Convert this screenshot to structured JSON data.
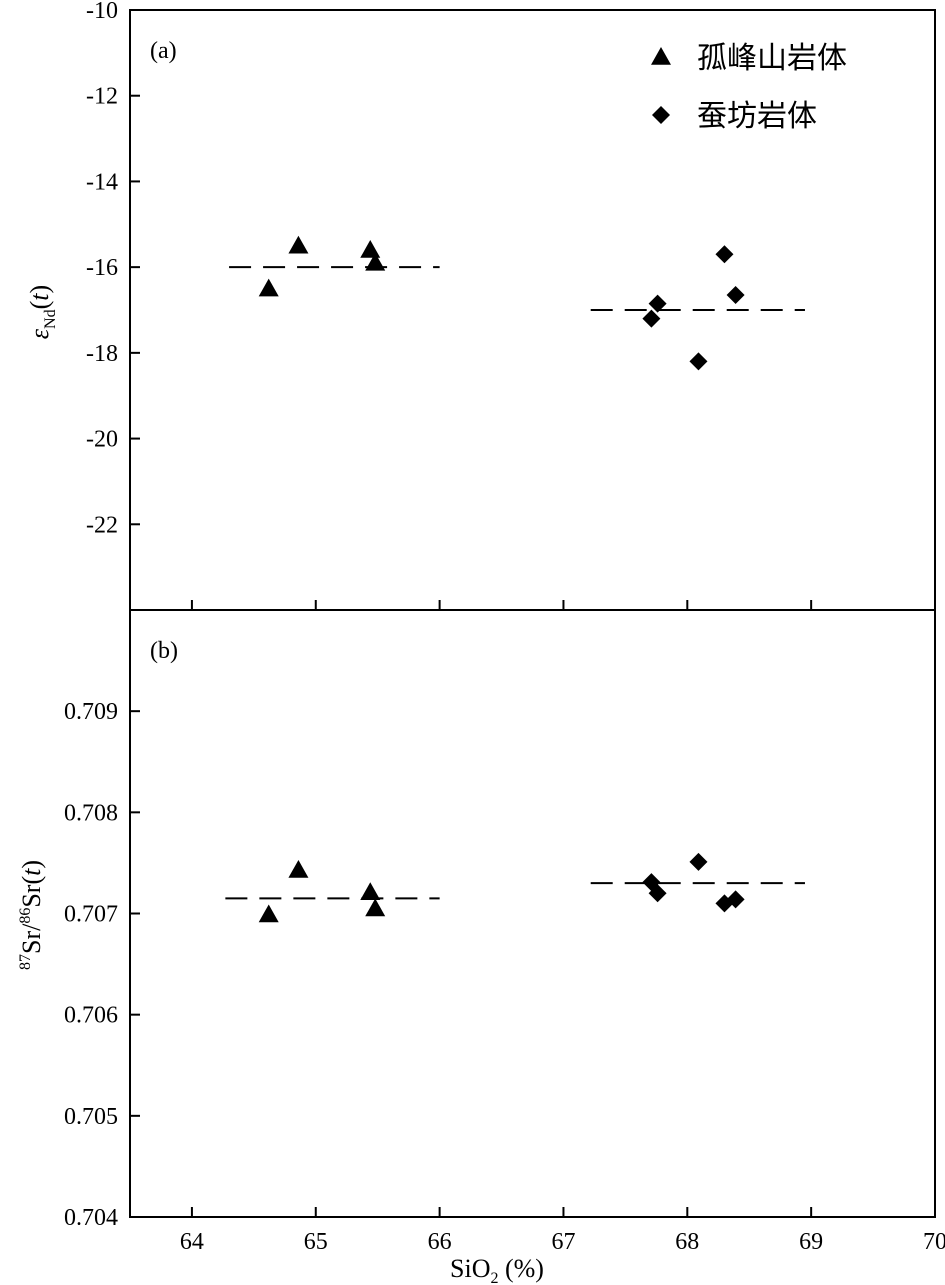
{
  "chart_data": [
    {
      "type": "scatter",
      "panel_label": "(a)",
      "ylabel": {
        "symbol": "ε",
        "subscript": "Nd",
        "open": "(",
        "var": "t",
        "close": ")"
      },
      "xlim": [
        63.5,
        70
      ],
      "ylim": [
        -24,
        -10
      ],
      "yticks": [
        "-10",
        "-12",
        "-14",
        "-16",
        "-18",
        "-20",
        "-22"
      ],
      "ytick_values": [
        -10,
        -12,
        -14,
        -16,
        -18,
        -20,
        -22
      ],
      "legend": {
        "position": "top-right",
        "entries": [
          {
            "marker": "triangle",
            "label": "孤峰山岩体"
          },
          {
            "marker": "diamond",
            "label": "蚕坊岩体"
          }
        ]
      },
      "series": [
        {
          "marker": "triangle",
          "x": [
            64.62,
            64.86,
            65.44,
            65.48
          ],
          "y": [
            -16.5,
            -15.5,
            -15.6,
            -15.9
          ]
        },
        {
          "marker": "diamond",
          "x": [
            67.71,
            67.76,
            68.09,
            68.3,
            68.39
          ],
          "y": [
            -17.2,
            -16.85,
            -18.2,
            -15.7,
            -16.65
          ]
        }
      ],
      "reference_lines": [
        {
          "x": [
            64.3,
            66.0
          ],
          "y": -16.0
        },
        {
          "x": [
            67.22,
            68.95
          ],
          "y": -17.0
        }
      ]
    },
    {
      "type": "scatter",
      "panel_label": "(b)",
      "xlabel": {
        "base": "SiO",
        "subscript": "2",
        "suffix": " (%)"
      },
      "ylabel": {
        "sup1": "87",
        "mid": "Sr/",
        "sup2": "86",
        "tail": "Sr(",
        "var": "t",
        "close": ")"
      },
      "xlim": [
        63.5,
        70
      ],
      "ylim": [
        0.704,
        0.71
      ],
      "xticks": [
        "64",
        "65",
        "66",
        "67",
        "68",
        "69",
        "70"
      ],
      "xtick_values": [
        64,
        65,
        66,
        67,
        68,
        69,
        70
      ],
      "yticks": [
        "0.704",
        "0.705",
        "0.706",
        "0.707",
        "0.708",
        "0.709"
      ],
      "ytick_values": [
        0.704,
        0.705,
        0.706,
        0.707,
        0.708,
        0.709
      ],
      "series": [
        {
          "marker": "triangle",
          "x": [
            64.62,
            64.86,
            65.44,
            65.48
          ],
          "y": [
            0.70699,
            0.70743,
            0.70721,
            0.70705
          ]
        },
        {
          "marker": "diamond",
          "x": [
            67.71,
            67.76,
            68.09,
            68.3,
            68.39
          ],
          "y": [
            0.70731,
            0.7072,
            0.70751,
            0.7071,
            0.70714
          ]
        }
      ],
      "reference_lines": [
        {
          "x": [
            64.27,
            66.0
          ],
          "y": 0.70715
        },
        {
          "x": [
            67.22,
            68.95
          ],
          "y": 0.7073
        }
      ]
    }
  ],
  "colors": {
    "marks": "#000000",
    "background": "#ffffff"
  }
}
